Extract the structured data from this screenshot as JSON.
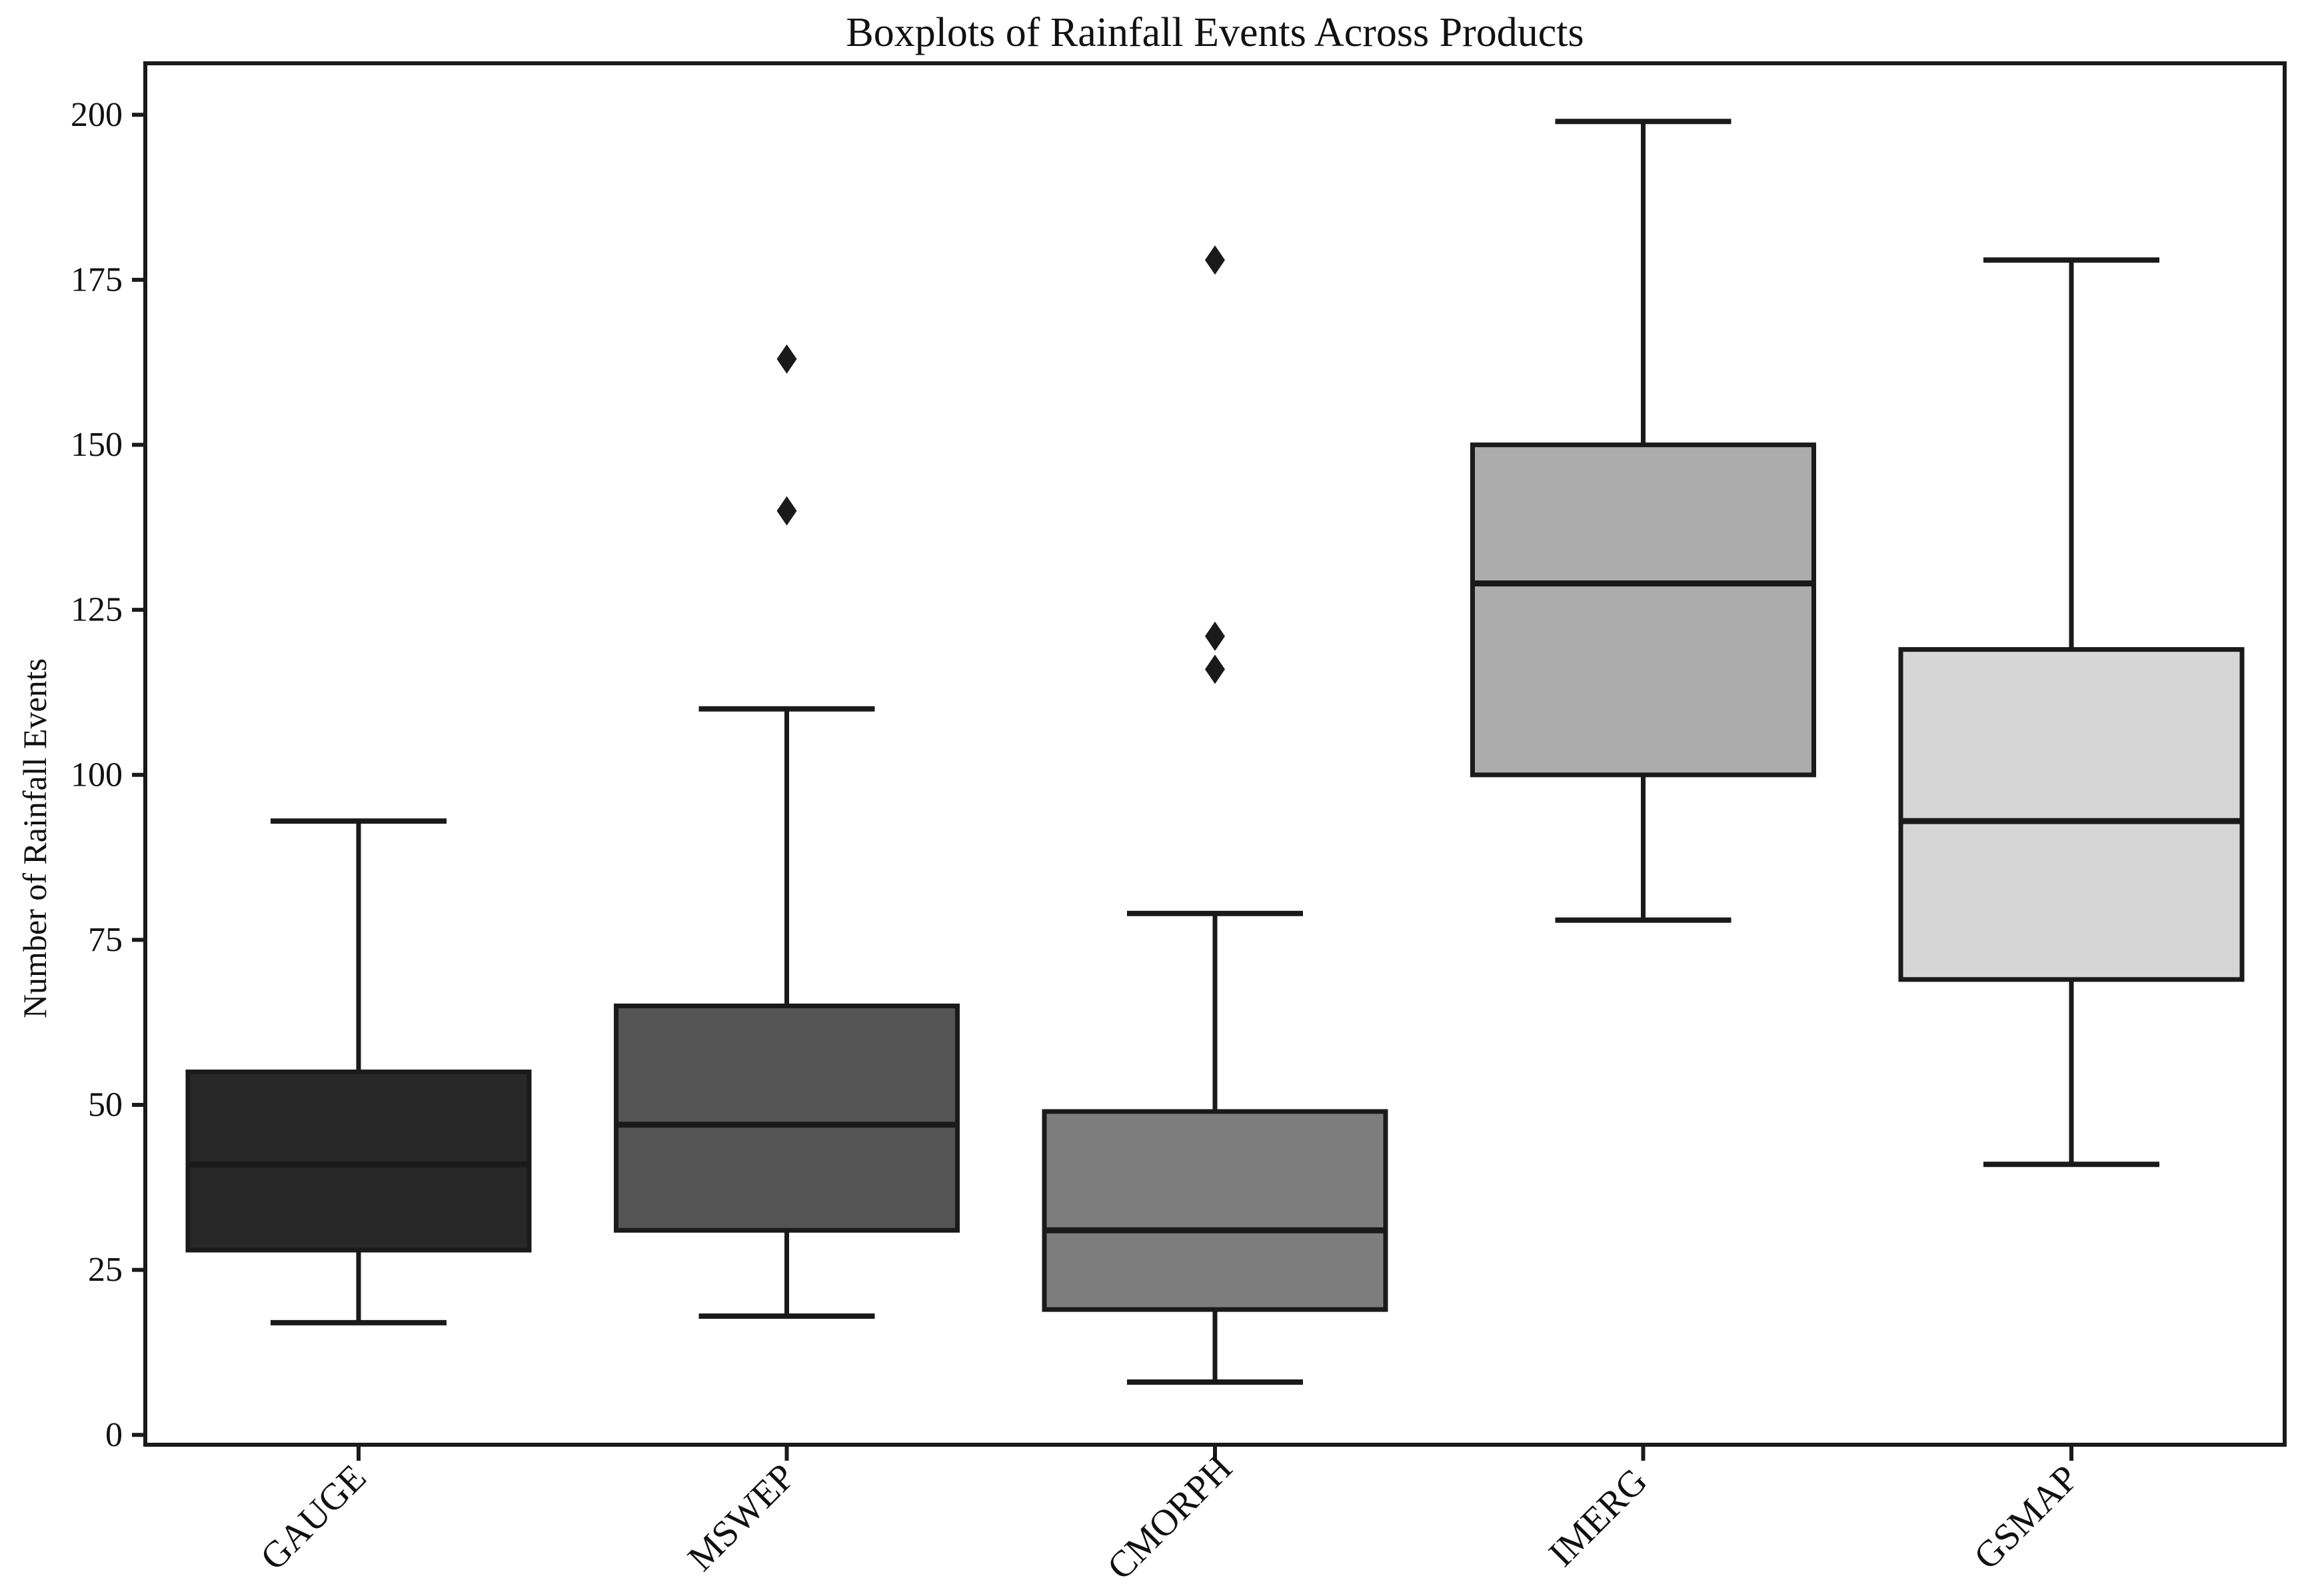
{
  "figure": {
    "title": "Boxplots of Rainfall Events Across Products",
    "ylabel": "Number of Rainfall Events"
  },
  "chart_data": {
    "type": "box",
    "title": "Boxplots of Rainfall Events Across Products",
    "xlabel": "",
    "ylabel": "Number of Rainfall Events",
    "categories": [
      "GAUGE",
      "MSWEP",
      "CMORPH",
      "IMERG",
      "GSMAP"
    ],
    "y_ticks": [
      0,
      25,
      50,
      75,
      100,
      125,
      150,
      175,
      200
    ],
    "ylim": [
      -1.5,
      207.8
    ],
    "grid": false,
    "legend": "none",
    "outlier_marker": "diamond",
    "edge_color": "#1a1a1a",
    "background": "#ffffff",
    "series": [
      {
        "name": "GAUGE",
        "whisker_low": 17,
        "q1": 28,
        "median": 41,
        "q3": 55,
        "whisker_high": 93,
        "outliers": [],
        "fill": "#282828"
      },
      {
        "name": "MSWEP",
        "whisker_low": 18,
        "q1": 31,
        "median": 47,
        "q3": 65,
        "whisker_high": 110,
        "outliers": [
          140,
          163
        ],
        "fill": "#545454"
      },
      {
        "name": "CMORPH",
        "whisker_low": 8,
        "q1": 19,
        "median": 31,
        "q3": 49,
        "whisker_high": 79,
        "outliers": [
          116,
          121,
          178
        ],
        "fill": "#7d7d7d"
      },
      {
        "name": "IMERG",
        "whisker_low": 78,
        "q1": 100,
        "median": 129,
        "q3": 150,
        "whisker_high": 199,
        "outliers": [],
        "fill": "#acacac"
      },
      {
        "name": "GSMAP",
        "whisker_low": 41,
        "q1": 69,
        "median": 93,
        "q3": 119,
        "whisker_high": 178,
        "outliers": [],
        "fill": "#d6d6d6"
      }
    ]
  }
}
